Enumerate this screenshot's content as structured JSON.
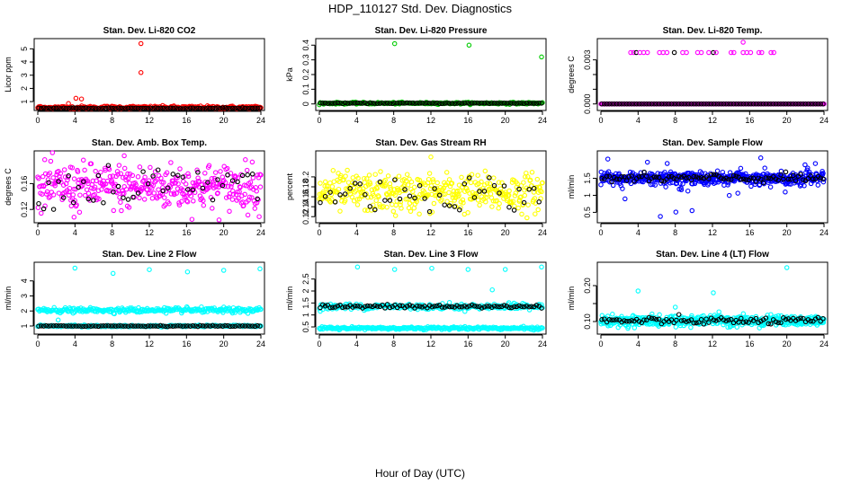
{
  "figure": {
    "title": "HDP_110127  Std. Dev. Diagnostics",
    "xlabel": "Hour of Day (UTC)"
  },
  "chart_data": [
    {
      "type": "scatter",
      "title": "Stan. Dev. Li-820 CO2",
      "ylabel": "Licor ppm",
      "color": "#ff0000",
      "xlim": [
        0,
        24
      ],
      "ylim": [
        0.6,
        5.5
      ],
      "xticks": [
        0,
        4,
        8,
        12,
        16,
        20,
        24
      ],
      "yticks": [
        1,
        2,
        3,
        4,
        5
      ],
      "base": 0.55,
      "base_noise": 0.06,
      "black_base": 0.5,
      "outliers": [
        {
          "x": 11.1,
          "y": 5.4
        },
        {
          "x": 11.1,
          "y": 3.2
        },
        {
          "x": 4.1,
          "y": 1.25
        },
        {
          "x": 4.7,
          "y": 1.2
        },
        {
          "x": 3.3,
          "y": 0.85
        }
      ]
    },
    {
      "type": "scatter",
      "title": "Stan. Dev. Li-820 Pressure",
      "ylabel": "kPa",
      "color": "#00cc00",
      "xlim": [
        0,
        24
      ],
      "ylim": [
        -0.02,
        0.42
      ],
      "xticks": [
        0,
        4,
        8,
        12,
        16,
        20,
        24
      ],
      "yticks": [
        0.0,
        0.1,
        0.2,
        0.3,
        0.4
      ],
      "base": 0.005,
      "base_noise": 0.003,
      "black_base": 0.005,
      "outliers": [
        {
          "x": 8.1,
          "y": 0.41
        },
        {
          "x": 16.1,
          "y": 0.4
        },
        {
          "x": 23.9,
          "y": 0.32
        }
      ]
    },
    {
      "type": "scatter",
      "title": "Stan. Dev. Li-820 Temp.",
      "ylabel": "degrees C",
      "color": "#ff00ff",
      "xlim": [
        0,
        24
      ],
      "ylim": [
        -0.0002,
        0.0042
      ],
      "xticks": [
        0,
        4,
        8,
        12,
        16,
        20,
        24
      ],
      "yticks": [
        0.0,
        0.001,
        0.002,
        0.003
      ],
      "ytick_labels": [
        "0.000",
        "",
        "",
        "0.003"
      ],
      "base": 0.0,
      "base_noise": 0.0,
      "black_base": 0.0,
      "level": {
        "y": 0.0035,
        "xs": [
          3.2,
          3.5,
          3.8,
          4.2,
          4.6,
          5.0,
          6.3,
          6.7,
          7.1,
          7.9,
          8.8,
          9.2,
          10.4,
          10.8,
          11.6,
          12.1,
          12.4,
          14.0,
          14.3,
          15.3,
          15.7,
          16.1,
          17.0,
          17.3,
          18.3,
          18.6
        ],
        "black_at": [
          3.8,
          7.9,
          12.1
        ]
      },
      "outliers": [
        {
          "x": 15.3,
          "y": 0.0042
        }
      ]
    },
    {
      "type": "scatter",
      "title": "Stan. Dev. Amb. Box Temp.",
      "ylabel": "degrees C",
      "color": "#ff00ff",
      "xlim": [
        0,
        24
      ],
      "ylim": [
        0.105,
        0.205
      ],
      "xticks": [
        0,
        4,
        8,
        12,
        16,
        20,
        24
      ],
      "yticks": [
        0.12,
        0.16
      ],
      "mode": "cloud",
      "cloud_center": 0.155,
      "cloud_spread": 0.022,
      "black_spread": 0.018,
      "outliers": [
        {
          "x": 3.9,
          "y": 0.108
        },
        {
          "x": 9.3,
          "y": 0.203
        }
      ]
    },
    {
      "type": "scatter",
      "title": "Stan. Dev. Gas Stream RH",
      "ylabel": "percent",
      "color": "#ffff00",
      "xlim": [
        0,
        24
      ],
      "ylim": [
        0.115,
        0.245
      ],
      "xticks": [
        0,
        4,
        8,
        12,
        16,
        20,
        24
      ],
      "yticks": [
        0.12,
        0.14,
        0.16,
        0.18,
        0.2
      ],
      "mode": "cloud",
      "cloud_center": 0.168,
      "cloud_spread": 0.024,
      "black_spread": 0.018,
      "outliers": [
        {
          "x": 12.0,
          "y": 0.24
        },
        {
          "x": 8.2,
          "y": 0.122
        }
      ]
    },
    {
      "type": "scatter",
      "title": "Stan. Dev. Sample Flow",
      "ylabel": "ml/min",
      "color": "#0000ff",
      "xlim": [
        0,
        24
      ],
      "ylim": [
        0.3,
        2.2
      ],
      "xticks": [
        0,
        4,
        8,
        12,
        16,
        20,
        24
      ],
      "yticks": [
        0.5,
        1.0,
        1.5
      ],
      "mode": "band",
      "band_center": 1.5,
      "band_spread": 0.09,
      "scatter_spread": 0.35,
      "outliers": [
        {
          "x": 6.4,
          "y": 0.38
        },
        {
          "x": 17.2,
          "y": 2.1
        },
        {
          "x": 9.8,
          "y": 0.55
        }
      ]
    },
    {
      "type": "scatter",
      "title": "Stan. Dev. Line 2 Flow",
      "ylabel": "ml/min",
      "color": "#00ffff",
      "xlim": [
        0,
        24
      ],
      "ylim": [
        0.7,
        5.0
      ],
      "xticks": [
        0,
        4,
        8,
        12,
        16,
        20,
        24
      ],
      "yticks": [
        1,
        2,
        3,
        4
      ],
      "mode": "two_band",
      "upper": 2.05,
      "upper_spread": 0.08,
      "lower": 1.0,
      "lower_spread": 0.03,
      "outliers": [
        {
          "x": 4.0,
          "y": 4.85
        },
        {
          "x": 8.1,
          "y": 4.5
        },
        {
          "x": 12.0,
          "y": 4.75
        },
        {
          "x": 16.1,
          "y": 4.6
        },
        {
          "x": 20.0,
          "y": 4.7
        },
        {
          "x": 23.9,
          "y": 4.8
        },
        {
          "x": 2.2,
          "y": 1.4
        }
      ]
    },
    {
      "type": "scatter",
      "title": "Stan. Dev. Line 3 Flow",
      "ylabel": "ml/min",
      "color": "#00ffff",
      "xlim": [
        0,
        24
      ],
      "ylim": [
        0.35,
        3.05
      ],
      "xticks": [
        0,
        4,
        8,
        12,
        16,
        20,
        24
      ],
      "yticks": [
        0.5,
        1.0,
        1.5,
        2.0,
        2.5
      ],
      "mode": "two_band_b",
      "upper": 1.35,
      "upper_spread": 0.06,
      "lower": 0.45,
      "lower_spread": 0.03,
      "outliers": [
        {
          "x": 4.1,
          "y": 3.0
        },
        {
          "x": 8.1,
          "y": 2.9
        },
        {
          "x": 12.1,
          "y": 2.95
        },
        {
          "x": 16.0,
          "y": 2.9
        },
        {
          "x": 20.0,
          "y": 2.9
        },
        {
          "x": 23.9,
          "y": 3.0
        },
        {
          "x": 18.6,
          "y": 2.05
        }
      ]
    },
    {
      "type": "scatter",
      "title": "Stan. Dev. Line 4 (LT) Flow",
      "ylabel": "ml/min",
      "color": "#00ffff",
      "xlim": [
        0,
        24
      ],
      "ylim": [
        0.075,
        0.255
      ],
      "xticks": [
        0,
        4,
        8,
        12,
        16,
        20,
        24
      ],
      "yticks": [
        0.1,
        0.15,
        0.2
      ],
      "ytick_labels": [
        "0.10",
        "",
        "0.20"
      ],
      "mode": "band",
      "band_center": 0.102,
      "band_spread": 0.007,
      "scatter_spread": 0.008,
      "outliers": [
        {
          "x": 20.0,
          "y": 0.25
        },
        {
          "x": 4.0,
          "y": 0.185
        },
        {
          "x": 12.1,
          "y": 0.18
        },
        {
          "x": 8.0,
          "y": 0.14
        }
      ]
    }
  ]
}
